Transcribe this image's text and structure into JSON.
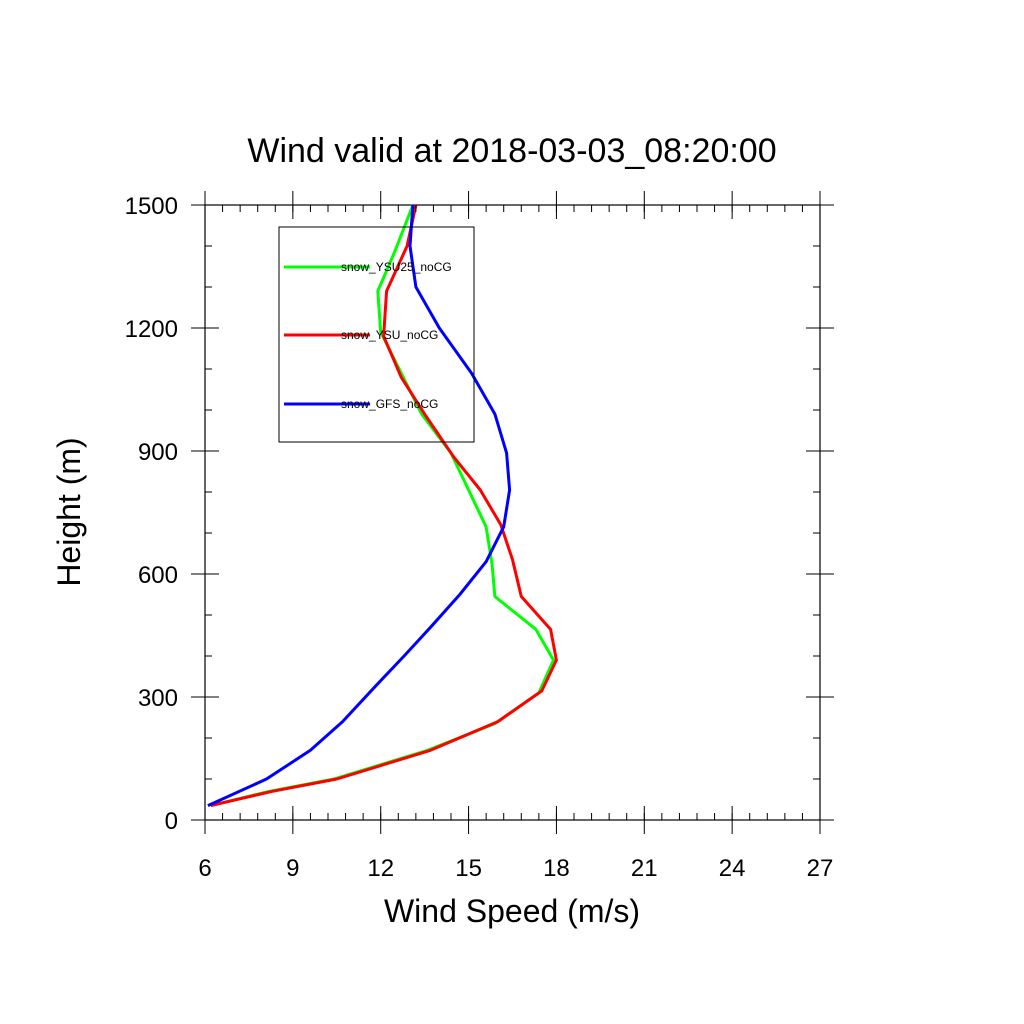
{
  "chart_data": {
    "type": "line",
    "title": "Wind valid at 2018-03-03_08:20:00",
    "xlabel": "Wind Speed (m/s)",
    "ylabel": "Height (m)",
    "xlim": [
      6,
      27
    ],
    "ylim": [
      0,
      1500
    ],
    "xticks": [
      6,
      9,
      12,
      15,
      18,
      21,
      24,
      27
    ],
    "yticks": [
      0,
      300,
      600,
      900,
      1200,
      1500
    ],
    "x_minor_step": 0.6,
    "y_minor_step": 100,
    "grid": false,
    "legend_position": "upper-left inside",
    "series": [
      {
        "name": "snow_YSU25_noCG",
        "color": "#00ff00",
        "points": [
          [
            6.2,
            35
          ],
          [
            8.2,
            70
          ],
          [
            10.4,
            100
          ],
          [
            13.6,
            170
          ],
          [
            15.9,
            235
          ],
          [
            17.4,
            310
          ],
          [
            17.9,
            390
          ],
          [
            17.3,
            465
          ],
          [
            15.9,
            545
          ],
          [
            15.8,
            625
          ],
          [
            15.6,
            715
          ],
          [
            15.0,
            805
          ],
          [
            14.4,
            895
          ],
          [
            13.4,
            990
          ],
          [
            12.7,
            1090
          ],
          [
            12.0,
            1190
          ],
          [
            11.9,
            1290
          ],
          [
            12.5,
            1390
          ],
          [
            13.1,
            1500
          ]
        ]
      },
      {
        "name": "snow_YSU_noCG",
        "color": "#ff0000",
        "points": [
          [
            6.2,
            35
          ],
          [
            8.3,
            70
          ],
          [
            10.5,
            100
          ],
          [
            13.7,
            170
          ],
          [
            16.0,
            240
          ],
          [
            17.5,
            315
          ],
          [
            18.0,
            390
          ],
          [
            17.8,
            465
          ],
          [
            16.8,
            545
          ],
          [
            16.5,
            635
          ],
          [
            16.1,
            720
          ],
          [
            15.4,
            805
          ],
          [
            14.5,
            885
          ],
          [
            13.5,
            990
          ],
          [
            12.7,
            1080
          ],
          [
            12.1,
            1180
          ],
          [
            12.2,
            1290
          ],
          [
            12.9,
            1400
          ],
          [
            13.2,
            1500
          ]
        ]
      },
      {
        "name": "snow_GFS_noCG",
        "color": "#0000ff",
        "points": [
          [
            6.1,
            35
          ],
          [
            8.1,
            100
          ],
          [
            9.6,
            170
          ],
          [
            10.7,
            240
          ],
          [
            11.8,
            325
          ],
          [
            12.8,
            400
          ],
          [
            13.7,
            470
          ],
          [
            14.7,
            550
          ],
          [
            15.6,
            630
          ],
          [
            16.2,
            715
          ],
          [
            16.4,
            805
          ],
          [
            16.3,
            895
          ],
          [
            15.9,
            990
          ],
          [
            15.1,
            1090
          ],
          [
            14.0,
            1200
          ],
          [
            13.2,
            1300
          ],
          [
            13.0,
            1400
          ],
          [
            13.1,
            1500
          ]
        ]
      }
    ]
  }
}
